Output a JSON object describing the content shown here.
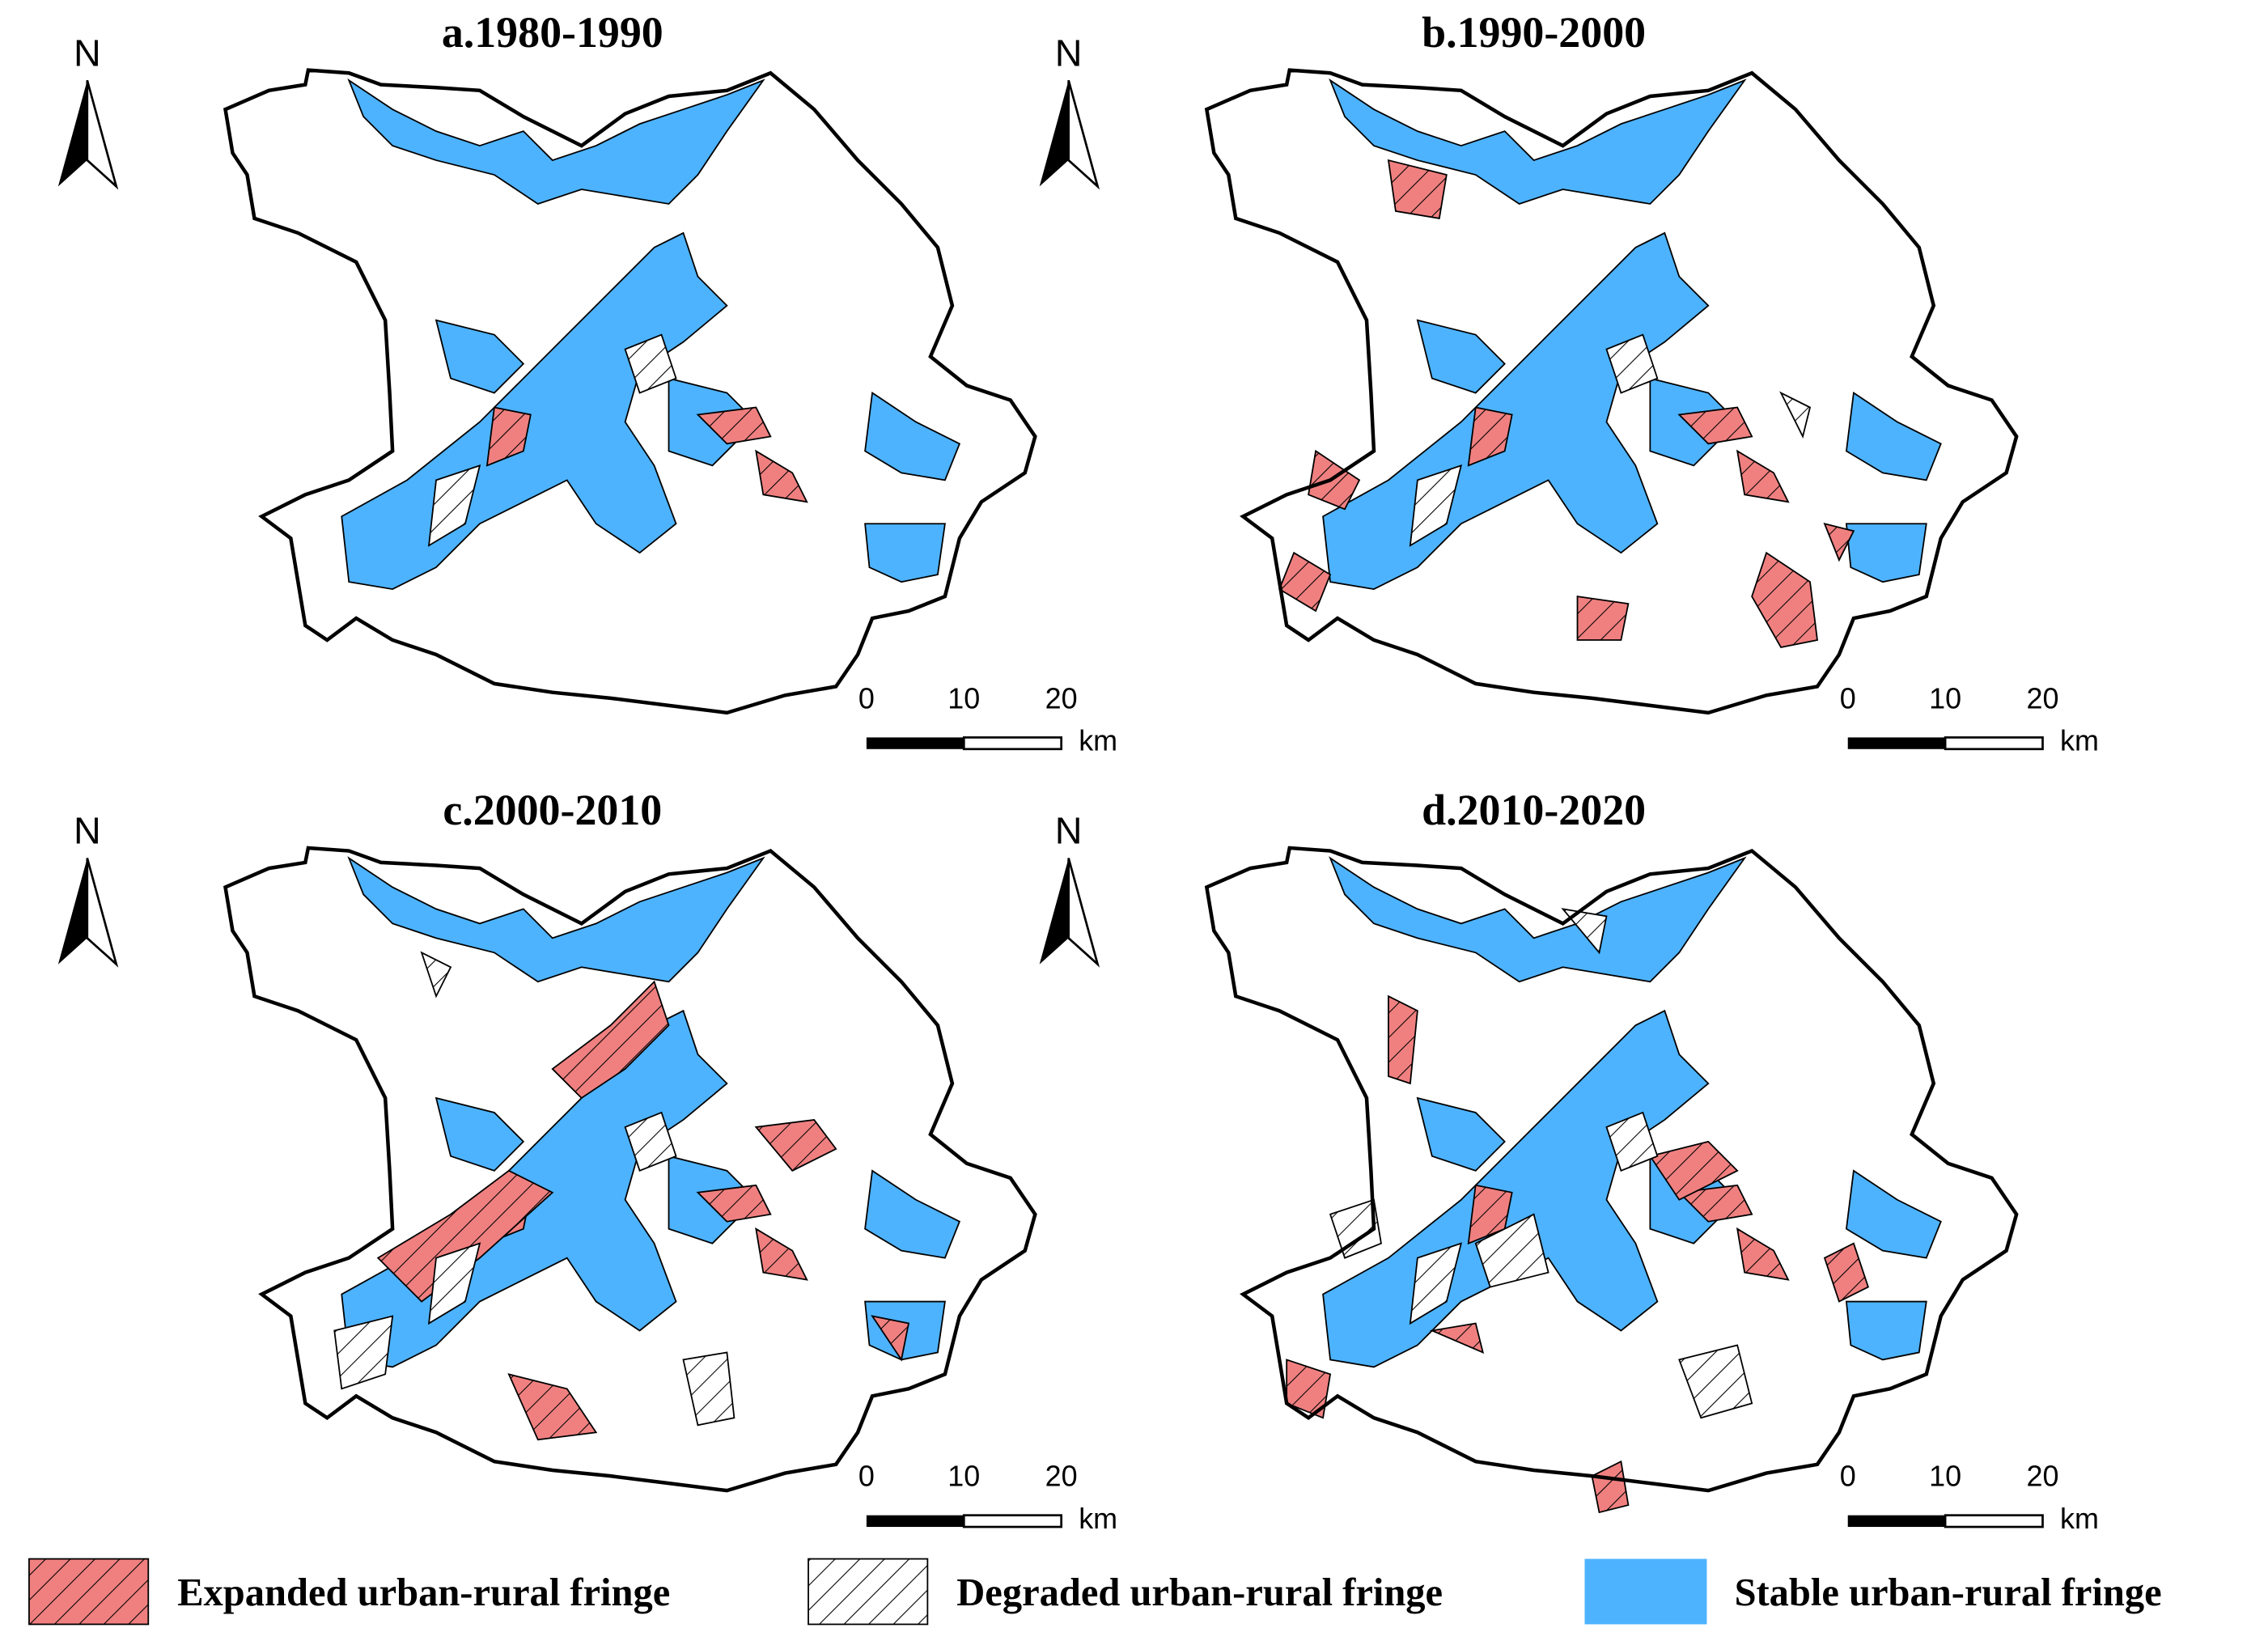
{
  "panels": [
    {
      "title": "a.1980-1990",
      "north": "N",
      "scale": {
        "ticks": [
          "0",
          "10",
          "20"
        ],
        "unit": "km"
      }
    },
    {
      "title": "b.1990-2000",
      "north": "N",
      "scale": {
        "ticks": [
          "0",
          "10",
          "20"
        ],
        "unit": "km"
      }
    },
    {
      "title": "c.2000-2010",
      "north": "N",
      "scale": {
        "ticks": [
          "0",
          "10",
          "20"
        ],
        "unit": "km"
      }
    },
    {
      "title": "d.2010-2020",
      "north": "N",
      "scale": {
        "ticks": [
          "0",
          "10",
          "20"
        ],
        "unit": "km"
      }
    }
  ],
  "legend": [
    {
      "label": "Expanded urban-rural fringe"
    },
    {
      "label": "Degraded urban-rural fringe"
    },
    {
      "label": "Stable urban-rural fringe"
    }
  ]
}
